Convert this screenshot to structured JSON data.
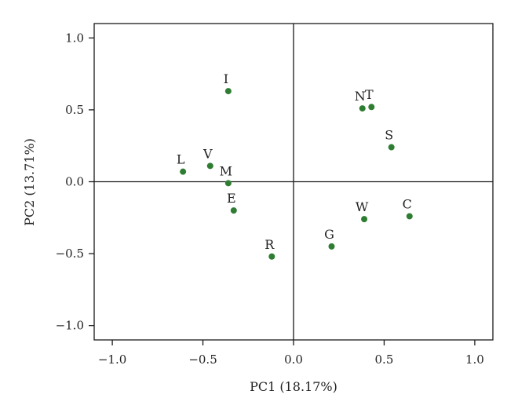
{
  "chart_data": {
    "type": "scatter",
    "title": "",
    "xlabel": "PC1 (18.17%)",
    "ylabel": "PC2 (13.71%)",
    "xlim": [
      -1.1,
      1.1
    ],
    "ylim": [
      -1.1,
      1.1
    ],
    "xticks": [
      -1.0,
      -0.5,
      0.0,
      0.5,
      1.0
    ],
    "yticks": [
      -1.0,
      -0.5,
      0.0,
      0.5,
      1.0
    ],
    "xtick_labels": [
      "−1.0",
      "−0.5",
      "0.0",
      "0.5",
      "1.0"
    ],
    "ytick_labels": [
      "−1.0",
      "−0.5",
      "0.0",
      "0.5",
      "1.0"
    ],
    "reference_lines": {
      "x": 0,
      "y": 0
    },
    "grid": false,
    "colors": {
      "point": "#2e7d32",
      "axis": "#1a1a1a"
    },
    "points": [
      {
        "label": "I",
        "x": -0.36,
        "y": 0.63
      },
      {
        "label": "N",
        "x": 0.38,
        "y": 0.51
      },
      {
        "label": "T",
        "x": 0.43,
        "y": 0.52
      },
      {
        "label": "S",
        "x": 0.54,
        "y": 0.24
      },
      {
        "label": "L",
        "x": -0.61,
        "y": 0.07
      },
      {
        "label": "V",
        "x": -0.46,
        "y": 0.11
      },
      {
        "label": "M",
        "x": -0.36,
        "y": -0.01
      },
      {
        "label": "E",
        "x": -0.33,
        "y": -0.2
      },
      {
        "label": "W",
        "x": 0.39,
        "y": -0.26
      },
      {
        "label": "C",
        "x": 0.64,
        "y": -0.24
      },
      {
        "label": "G",
        "x": 0.21,
        "y": -0.45
      },
      {
        "label": "R",
        "x": -0.12,
        "y": -0.52
      }
    ]
  }
}
